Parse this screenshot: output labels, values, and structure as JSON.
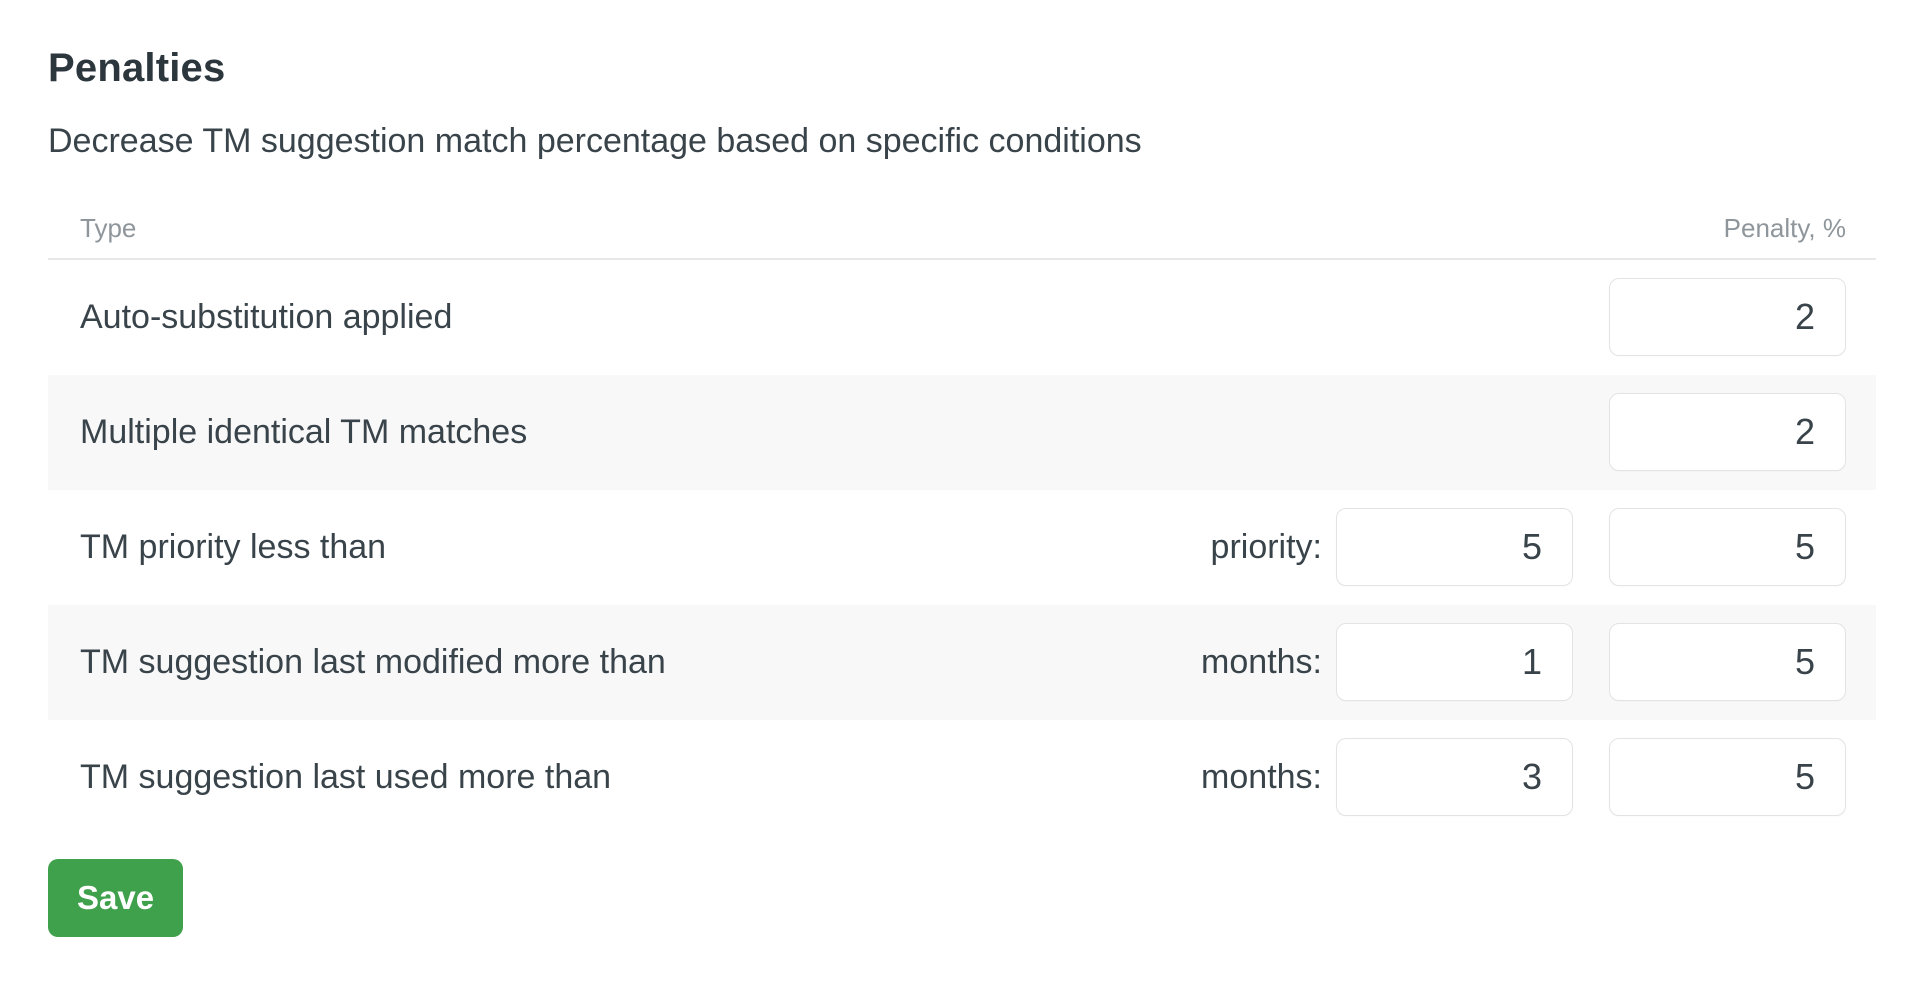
{
  "page": {
    "title": "Penalties",
    "subtitle": "Decrease TM suggestion match percentage based on specific conditions"
  },
  "table": {
    "type_header": "Type",
    "penalty_header": "Penalty, %",
    "rows": [
      {
        "label": "Auto-substitution applied",
        "penalty": "2"
      },
      {
        "label": "Multiple identical TM matches",
        "penalty": "2"
      },
      {
        "label": "TM priority less than",
        "param_label": "priority:",
        "param_value": "5",
        "penalty": "5"
      },
      {
        "label": "TM suggestion last modified more than",
        "param_label": "months:",
        "param_value": "1",
        "penalty": "5"
      },
      {
        "label": "TM suggestion last used more than",
        "param_label": "months:",
        "param_value": "3",
        "penalty": "5"
      }
    ]
  },
  "actions": {
    "save": "Save"
  },
  "colors": {
    "accent_green": "#40a14d",
    "row_alt_background": "#f8f8f9",
    "divider": "#e8e8e8",
    "muted_header_text": "#8f969b",
    "body_text": "#39434a",
    "input_border": "#e3e3e4"
  }
}
